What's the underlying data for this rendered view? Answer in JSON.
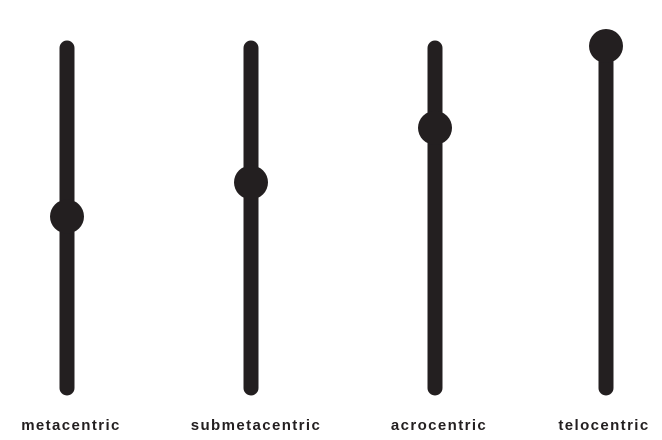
{
  "colors": {
    "chromosome": "#231f20",
    "background": "#ffffff"
  },
  "chromosomes": [
    {
      "label": "metacentric",
      "centromere_position": 0.5
    },
    {
      "label": "submetacentric",
      "centromere_position": 0.4
    },
    {
      "label": "acrocentric",
      "centromere_position": 0.24
    },
    {
      "label": "telocentric",
      "centromere_position": 0.0
    }
  ]
}
